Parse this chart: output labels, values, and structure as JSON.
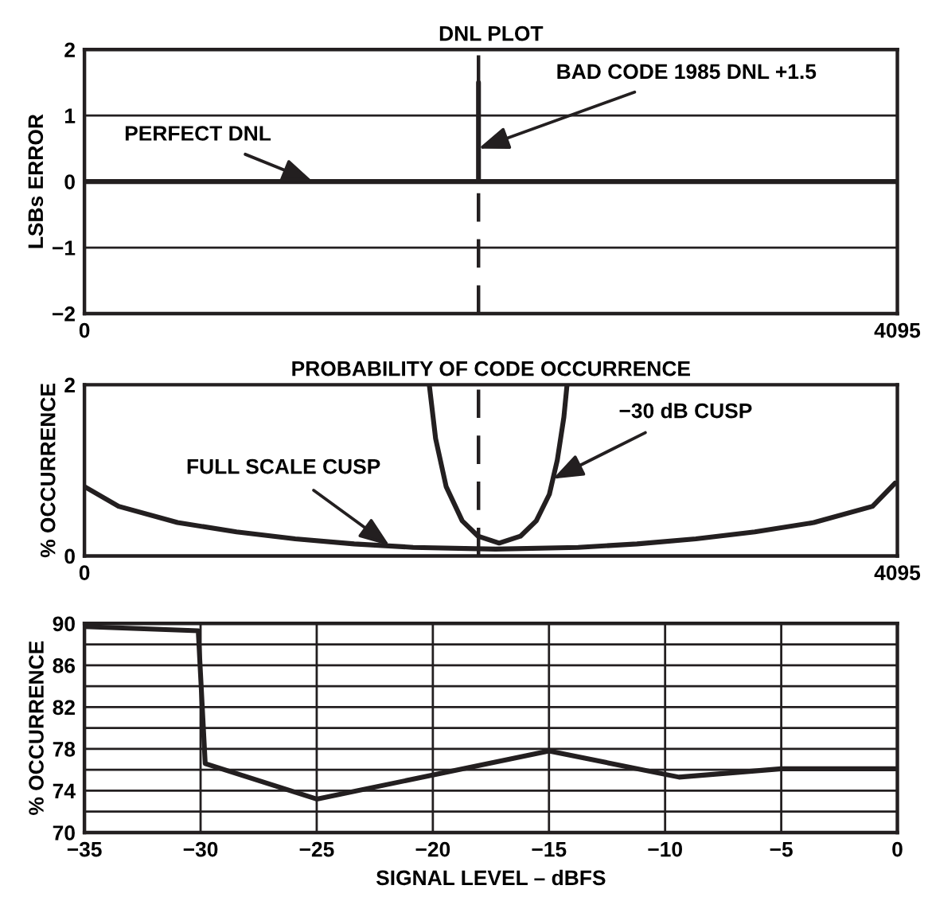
{
  "chart_data": [
    {
      "type": "line",
      "title": "DNL PLOT",
      "ylabel": "LSBs ERROR",
      "x": [
        0,
        1985,
        1985,
        1985,
        4095
      ],
      "values": [
        0,
        0,
        1.5,
        0,
        0
      ],
      "color": "#231f20",
      "xlim": [
        0,
        4095
      ],
      "xticks": [
        0,
        4095
      ],
      "ylim": [
        -2,
        2
      ],
      "yticks": [
        {
          "value": -2,
          "label": "−2"
        },
        {
          "value": -1,
          "label": "−1"
        },
        0,
        1,
        2
      ],
      "grid": "y",
      "ref_lines": [
        {
          "axis": "x",
          "value": 1985,
          "line_style": "dashed",
          "color": "#231f20"
        }
      ],
      "annotations": [
        {
          "text": "PERFECT DNL",
          "x": 1150,
          "y": 0
        },
        {
          "text": "BAD CODE 1985 DNL +1.5",
          "x": 1985,
          "y": 0.5
        }
      ]
    },
    {
      "type": "line",
      "title": "PROBABILITY OF CODE OCCURRENCE",
      "ylabel": "% OCCURRENCE",
      "xlim": [
        0,
        4095
      ],
      "xticks": [
        0,
        4095
      ],
      "ylim": [
        0,
        2
      ],
      "yticks": [
        0,
        2
      ],
      "ref_lines": [
        {
          "axis": "x",
          "value": 1985,
          "line_style": "dashed",
          "color": "#231f20"
        }
      ],
      "series": [
        {
          "color": "#231f20",
          "x": [
            0,
            172,
            469,
            766,
            1062,
            1359,
            1656,
            2071,
            2487,
            2783,
            3080,
            3377,
            3674,
            3970,
            4083
          ],
          "values": [
            0.81,
            0.58,
            0.39,
            0.28,
            0.2,
            0.14,
            0.1,
            0.08,
            0.1,
            0.14,
            0.2,
            0.28,
            0.39,
            0.58,
            0.85
          ]
        },
        {
          "color": "#231f20",
          "x": [
            1737,
            1769,
            1822,
            1903,
            1983,
            2089,
            2196,
            2276,
            2342,
            2360,
            2382,
            2415,
            2431
          ],
          "values": [
            2,
            1.37,
            0.81,
            0.41,
            0.23,
            0.15,
            0.23,
            0.41,
            0.72,
            0.9,
            1.12,
            1.62,
            2
          ]
        }
      ],
      "annotations": [
        {
          "text": "FULL SCALE CUSP",
          "x": 1537,
          "y": 0.12
        },
        {
          "text": "−30 dB CUSP",
          "x": 2360,
          "y": 0.9
        }
      ]
    },
    {
      "type": "line",
      "xlabel": "SIGNAL LEVEL – dBFS",
      "ylabel": "% OCCURRENCE",
      "x": [
        -35,
        -30.1,
        -29.8,
        -25,
        -15,
        -9.4,
        -5,
        0
      ],
      "values": [
        89.7,
        89.3,
        76.6,
        73.2,
        77.8,
        75.3,
        76.1,
        76.1
      ],
      "color": "#231f20",
      "xlim": [
        -35,
        0
      ],
      "xticks": [
        {
          "value": -35,
          "label": "−35"
        },
        {
          "value": -30,
          "label": "−30"
        },
        {
          "value": -25,
          "label": "−25"
        },
        {
          "value": -20,
          "label": "−20"
        },
        {
          "value": -15,
          "label": "−15"
        },
        {
          "value": -10,
          "label": "−10"
        },
        {
          "value": -5,
          "label": "−5"
        },
        0
      ],
      "ylim": [
        70,
        90
      ],
      "yticks": [
        70,
        {
          "value": 72,
          "label": null
        },
        74,
        {
          "value": 76,
          "label": null
        },
        78,
        {
          "value": 80,
          "label": null
        },
        82,
        {
          "value": 84,
          "label": null
        },
        86,
        {
          "value": 88,
          "label": null
        },
        90
      ],
      "grid": true
    }
  ]
}
